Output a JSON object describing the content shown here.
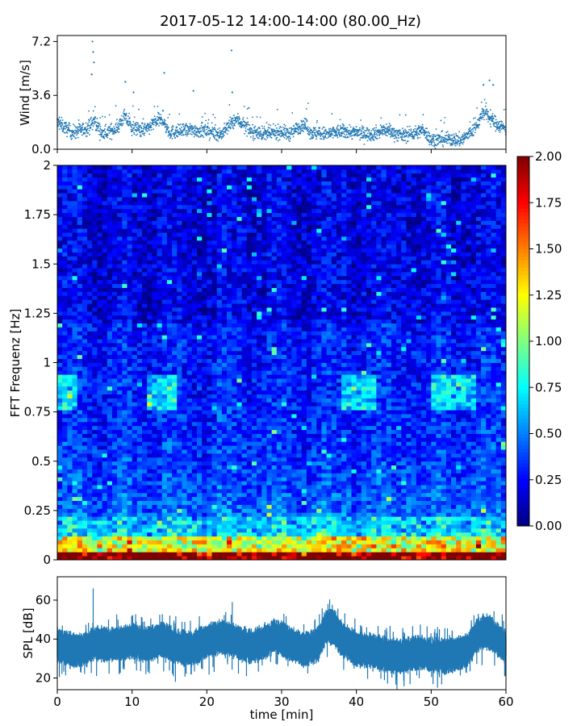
{
  "title": "2017-05-12 14:00-14:00 (80.00_Hz)",
  "chart_data": [
    {
      "type": "scatter",
      "panel": "wind",
      "ylabel": "Wind [m/s]",
      "ylim": [
        0,
        7.6
      ],
      "yticks": [
        "0.0",
        "3.6",
        "7.2"
      ],
      "xlim": [
        0,
        60
      ],
      "grid": false,
      "color": "#1f77b4",
      "samples_per_min": 40,
      "baseline": [
        [
          0,
          1.8
        ],
        [
          2,
          1.1
        ],
        [
          4,
          1.4
        ],
        [
          5,
          1.9
        ],
        [
          6,
          1.0
        ],
        [
          8,
          1.4
        ],
        [
          9,
          2.2
        ],
        [
          10,
          1.4
        ],
        [
          12,
          1.3
        ],
        [
          13,
          1.8
        ],
        [
          14,
          2.0
        ],
        [
          15,
          1.1
        ],
        [
          18,
          1.3
        ],
        [
          20,
          1.2
        ],
        [
          22,
          1.0
        ],
        [
          23,
          1.6
        ],
        [
          24,
          2.0
        ],
        [
          26,
          1.2
        ],
        [
          28,
          1.0
        ],
        [
          30,
          1.2
        ],
        [
          31,
          1.0
        ],
        [
          33,
          1.7
        ],
        [
          34,
          1.1
        ],
        [
          36,
          1.0
        ],
        [
          38,
          1.2
        ],
        [
          40,
          1.1
        ],
        [
          42,
          1.0
        ],
        [
          44,
          1.3
        ],
        [
          46,
          0.9
        ],
        [
          48,
          1.1
        ],
        [
          49,
          1.3
        ],
        [
          50,
          0.6
        ],
        [
          52,
          0.7
        ],
        [
          54,
          0.6
        ],
        [
          55,
          1.0
        ],
        [
          56,
          1.5
        ],
        [
          57,
          2.5
        ],
        [
          58,
          2.0
        ],
        [
          59,
          1.6
        ],
        [
          60,
          1.4
        ]
      ],
      "highlights": [
        [
          4.7,
          7.2
        ],
        [
          4.8,
          6.5
        ],
        [
          4.9,
          5.8
        ],
        [
          4.6,
          5.0
        ],
        [
          23.3,
          6.6
        ],
        [
          14.3,
          5.1
        ],
        [
          9.1,
          4.5
        ],
        [
          10.2,
          3.8
        ],
        [
          18.2,
          3.9
        ],
        [
          23.4,
          3.8
        ],
        [
          57.0,
          4.3
        ],
        [
          57.8,
          4.6
        ],
        [
          58.3,
          4.3
        ]
      ]
    },
    {
      "type": "heatmap",
      "panel": "spectrogram",
      "ylabel": "FFT Frequenz [Hz]",
      "ylim": [
        0,
        2
      ],
      "yticks": [
        "0",
        "0.25",
        "0.5",
        "0.75",
        "1",
        "1.25",
        "1.5",
        "1.75",
        "2"
      ],
      "xlim": [
        0,
        60
      ],
      "colormap": "jet",
      "clim": [
        0,
        2
      ],
      "colorbar_ticks": [
        "0.00",
        "0.25",
        "0.50",
        "0.75",
        "1.00",
        "1.25",
        "1.50",
        "1.75",
        "2.00"
      ],
      "columns": 90,
      "rows": 100
    },
    {
      "type": "area",
      "panel": "spl",
      "ylabel": "SPL [dB]",
      "xlabel": "time [min]",
      "ylim": [
        14,
        72
      ],
      "yticks": [
        "20",
        "40",
        "60"
      ],
      "xticks": [
        "0",
        "10",
        "20",
        "30",
        "40",
        "50",
        "60"
      ],
      "xlim": [
        0,
        60
      ],
      "color": "#1f77b4",
      "samples_per_min": 40,
      "center": [
        [
          0,
          37
        ],
        [
          2,
          34
        ],
        [
          4,
          35
        ],
        [
          5,
          38
        ],
        [
          7,
          37
        ],
        [
          9,
          38
        ],
        [
          10,
          39
        ],
        [
          12,
          37
        ],
        [
          14,
          40
        ],
        [
          16,
          36
        ],
        [
          18,
          35
        ],
        [
          20,
          39
        ],
        [
          22,
          41
        ],
        [
          24,
          39
        ],
        [
          26,
          36
        ],
        [
          28,
          39
        ],
        [
          29,
          42
        ],
        [
          31,
          38
        ],
        [
          33,
          34
        ],
        [
          35,
          38
        ],
        [
          36,
          47
        ],
        [
          37,
          46
        ],
        [
          38,
          40
        ],
        [
          40,
          35
        ],
        [
          42,
          34
        ],
        [
          44,
          32
        ],
        [
          46,
          31
        ],
        [
          48,
          33
        ],
        [
          50,
          32
        ],
        [
          52,
          31
        ],
        [
          54,
          33
        ],
        [
          55,
          35
        ],
        [
          56,
          41
        ],
        [
          57,
          44
        ],
        [
          58,
          43
        ],
        [
          59,
          39
        ],
        [
          60,
          36
        ]
      ],
      "spikes": [
        [
          4.8,
          66
        ],
        [
          23.4,
          59
        ],
        [
          36.2,
          58
        ],
        [
          58.1,
          49
        ]
      ]
    }
  ]
}
